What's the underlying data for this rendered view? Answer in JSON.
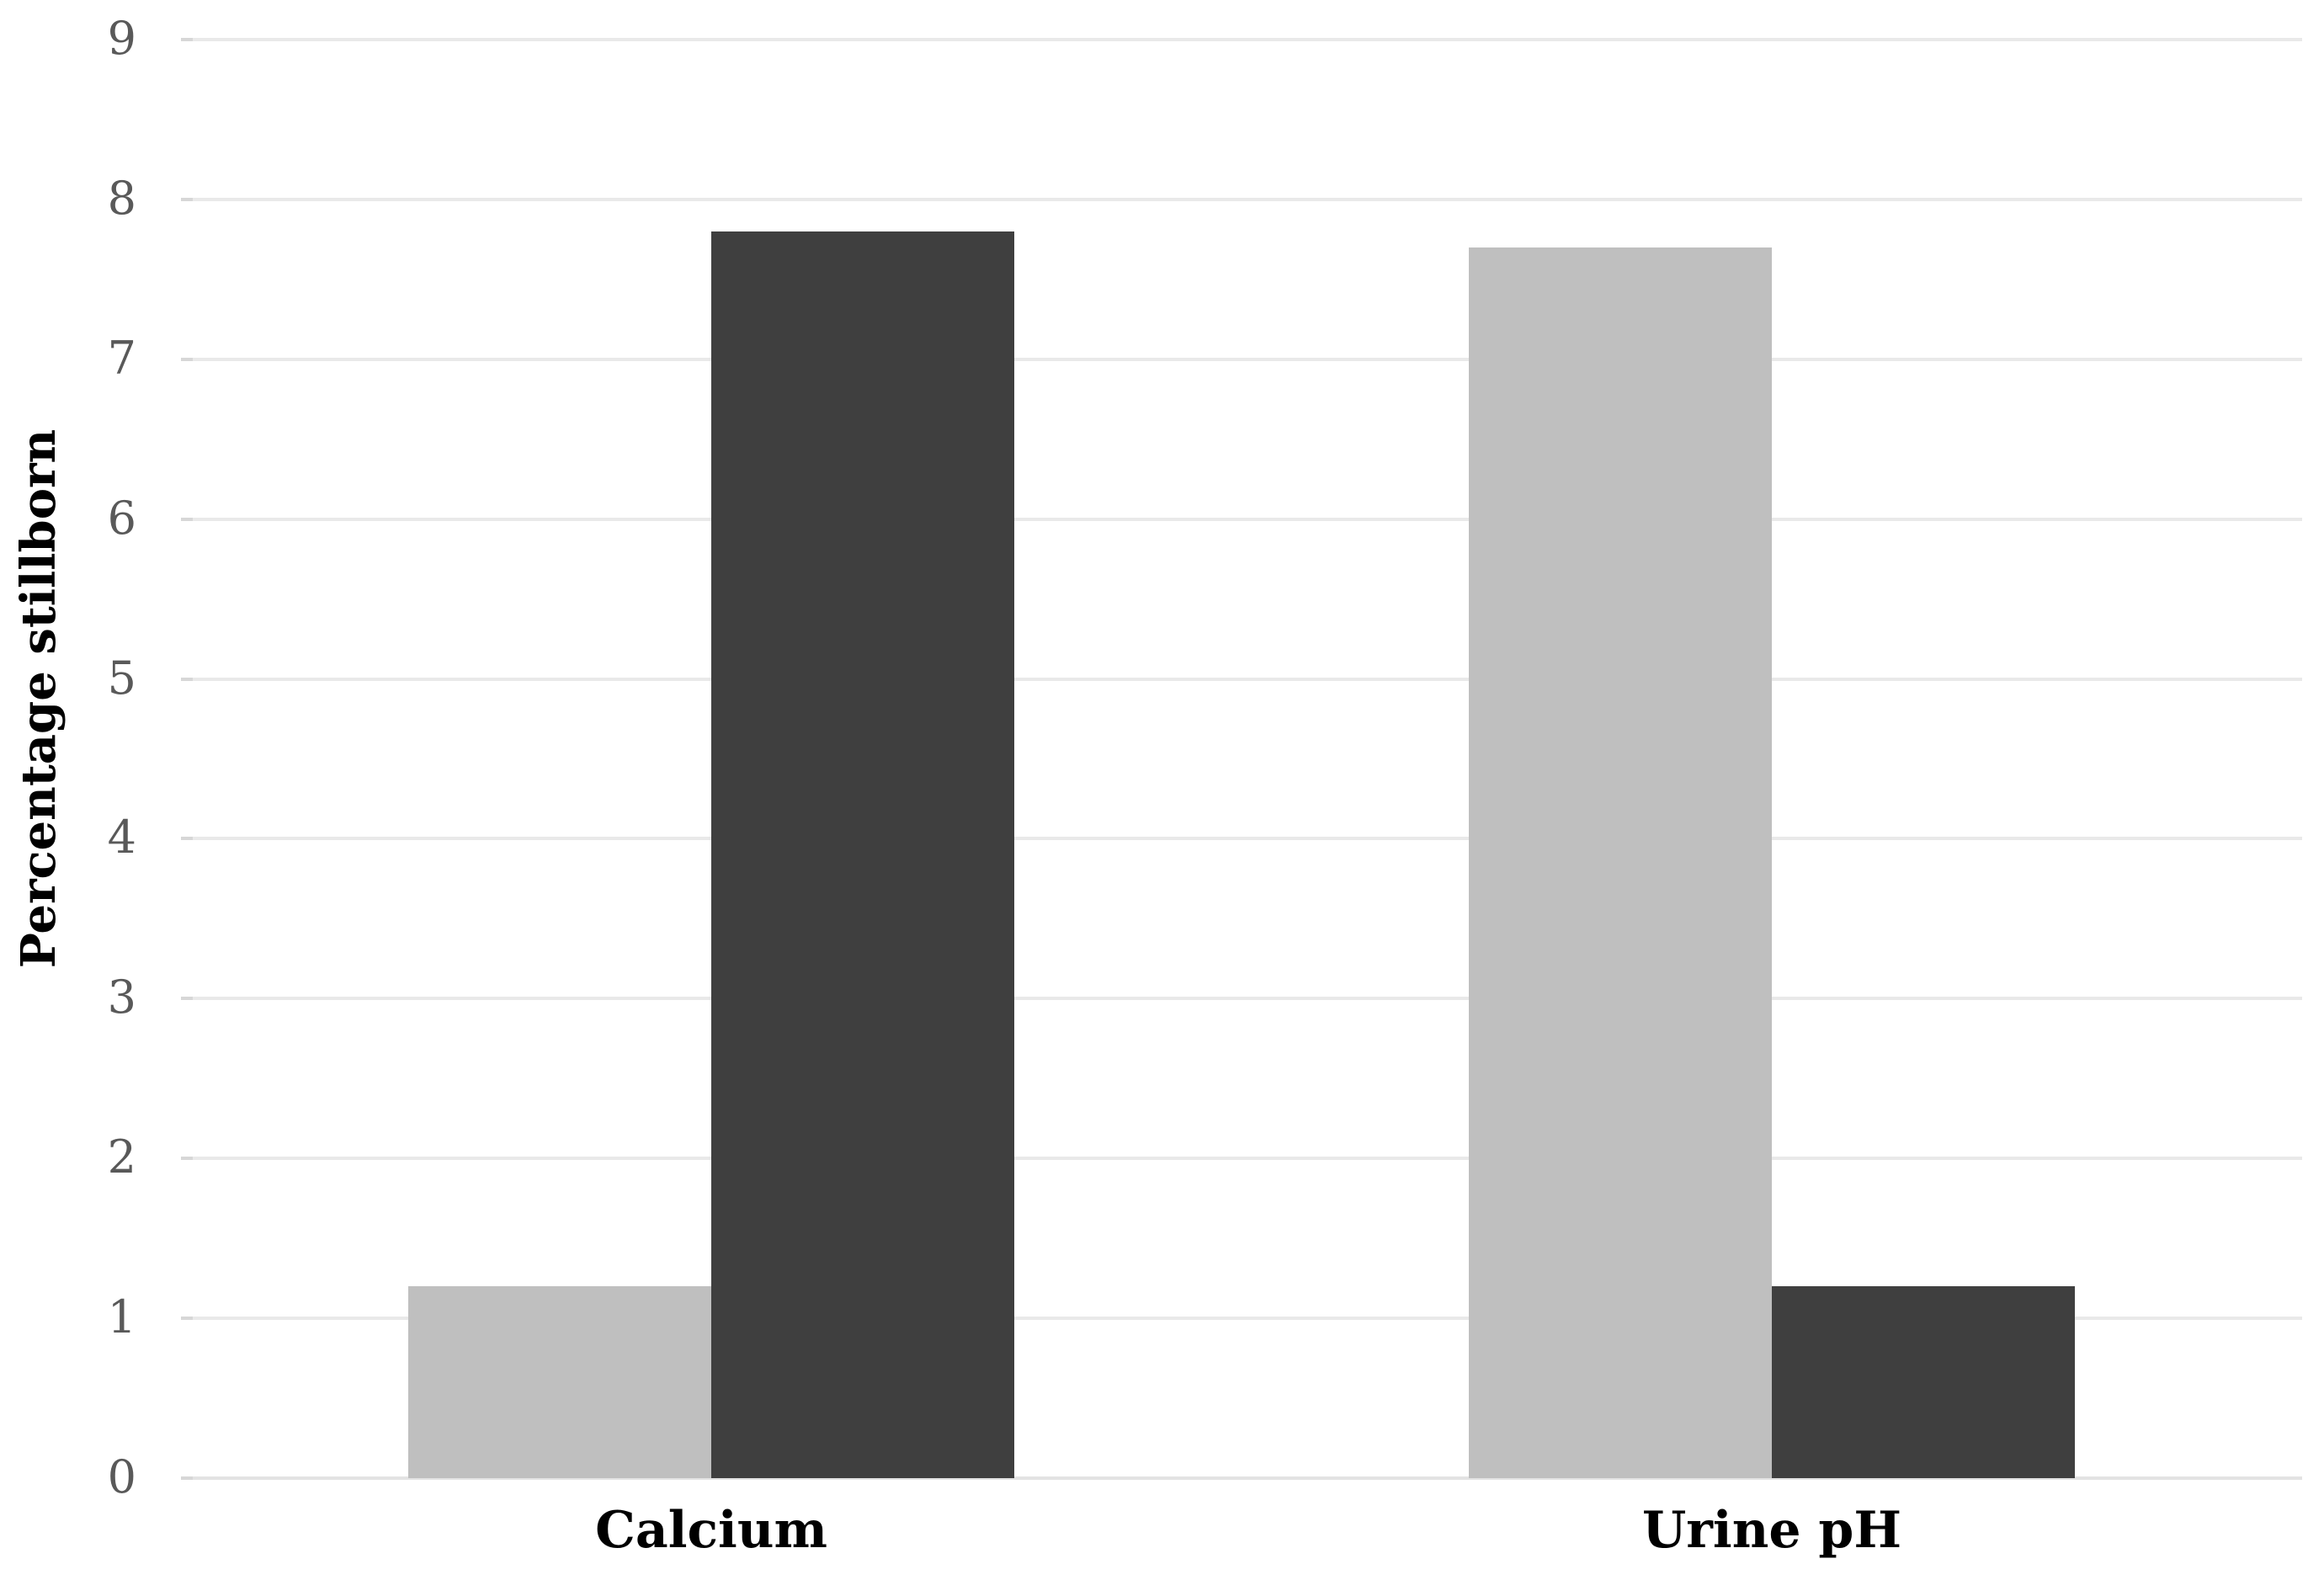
{
  "chart_data": {
    "type": "bar",
    "categories": [
      "Calcium",
      "Urine pH"
    ],
    "series": [
      {
        "name": "light-gray",
        "color": "#bfbfbf",
        "values": [
          1.2,
          7.7
        ]
      },
      {
        "name": "dark-gray",
        "color": "#3f3f3f",
        "values": [
          7.8,
          1.2
        ]
      }
    ],
    "title": "",
    "xlabel": "",
    "ylabel": "Percentage stillborn",
    "ylim": [
      0,
      9
    ],
    "yticks": [
      0,
      1,
      2,
      3,
      4,
      5,
      6,
      7,
      8,
      9
    ],
    "grid": true,
    "legend": false,
    "colors": {
      "background": "#ffffff",
      "gridline": "#e9e9e9",
      "baseline": "#e3e3e3",
      "tick_mark": "#d7d7d7",
      "tick_label": "#595959",
      "category_label": "#000000",
      "axis_title": "#000000"
    }
  }
}
